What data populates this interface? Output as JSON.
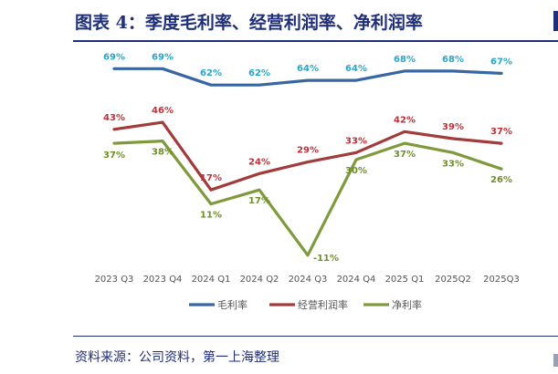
{
  "header": {
    "title": "图表 4：季度毛利率、经营利润率、净利润率"
  },
  "footer": {
    "source": "资料来源：公司资料，第一上海整理"
  },
  "chart_data": {
    "type": "line",
    "title": "",
    "xlabel": "",
    "ylabel": "",
    "categories": [
      "2023 Q3",
      "2023 Q4",
      "2024 Q1",
      "2024 Q2",
      "2024 Q3",
      "2024 Q4",
      "2025 Q1",
      "2025Q2",
      "2025Q3"
    ],
    "ylim": [
      -15,
      75
    ],
    "grid": false,
    "legend_position": "bottom",
    "series": [
      {
        "name": "毛利率",
        "color": "#3866a3",
        "label_color": "#2aa6c9",
        "values": [
          69,
          69,
          62,
          62,
          64,
          64,
          68,
          68,
          67
        ],
        "labels": [
          "69%",
          "69%",
          "62%",
          "62%",
          "64%",
          "64%",
          "68%",
          "68%",
          "67%"
        ]
      },
      {
        "name": "经营利润率",
        "color": "#a33b3b",
        "label_color": "#c0303a",
        "values": [
          43,
          46,
          17,
          24,
          29,
          33,
          42,
          39,
          37
        ],
        "labels": [
          "43%",
          "46%",
          "17%",
          "24%",
          "29%",
          "33%",
          "42%",
          "39%",
          "37%"
        ]
      },
      {
        "name": "净利率",
        "color": "#7f9a3c",
        "label_color": "#6f8f2a",
        "values": [
          37,
          38,
          11,
          17,
          -11,
          30,
          37,
          33,
          26
        ],
        "labels": [
          "37%",
          "38%",
          "11%",
          "17%",
          "-11%",
          "30%",
          "37%",
          "33%",
          "26%"
        ]
      }
    ]
  }
}
